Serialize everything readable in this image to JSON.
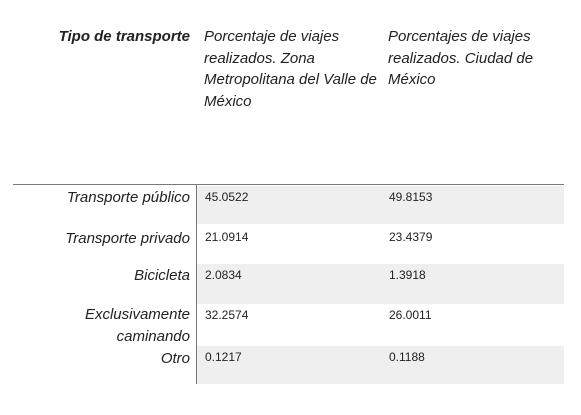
{
  "table": {
    "headers": [
      "Tipo de transporte",
      "Porcentaje de viajes realizados. Zona Metropolitana del Valle de México",
      "Porcentajes de viajes realizados. Ciudad de México"
    ],
    "rows": [
      {
        "label": "Transporte público",
        "zmvm": "45.0522",
        "cdmx": "49.8153"
      },
      {
        "label": "Transporte privado",
        "zmvm": "21.0914",
        "cdmx": "23.4379"
      },
      {
        "label": "Bicicleta",
        "zmvm": "2.0834",
        "cdmx": "1.3918"
      },
      {
        "label": "Exclusivamente caminando",
        "zmvm": "32.2574",
        "cdmx": "26.0011"
      },
      {
        "label": "Otro",
        "zmvm": "0.1217",
        "cdmx": "0.1188"
      }
    ]
  }
}
